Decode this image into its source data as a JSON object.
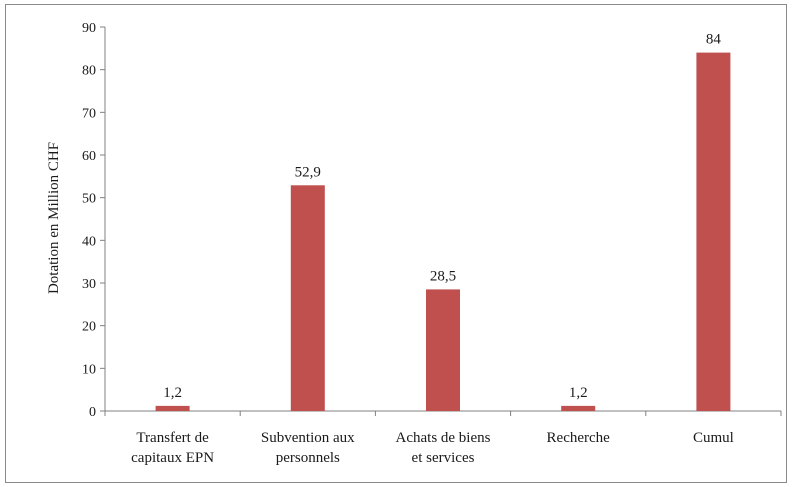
{
  "chart_data": {
    "type": "bar",
    "categories": [
      [
        "Transfert de",
        "capitaux EPN"
      ],
      [
        "Subvention aux",
        "personnels"
      ],
      [
        "Achats de biens",
        "et services"
      ],
      [
        "Recherche"
      ],
      [
        "Cumul"
      ]
    ],
    "values": [
      1.2,
      52.9,
      28.5,
      1.2,
      84
    ],
    "data_labels": [
      "1,2",
      "52,9",
      "28,5",
      "1,2",
      "84"
    ],
    "title": "",
    "xlabel": "",
    "ylabel": "Dotation en Million CHF",
    "ylim": [
      0,
      90
    ],
    "yticks": [
      "0",
      "10",
      "20",
      "30",
      "40",
      "50",
      "60",
      "70",
      "80",
      "90"
    ],
    "grid": false,
    "legend": "none",
    "bar_color": "#c0504d"
  }
}
